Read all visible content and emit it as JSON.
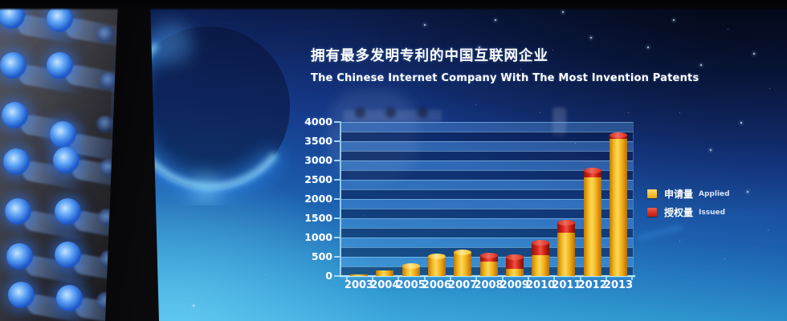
{
  "screen": {
    "title_zh": "拥有最多发明专利的中国互联网企业",
    "title_en": "The Chinese Internet Company With The Most Invention Patents"
  },
  "legend": {
    "applied": {
      "zh": "申请量",
      "en": "Applied",
      "color": "#f2c12c"
    },
    "issued": {
      "zh": "授权量",
      "en": "Issued",
      "color": "#d3261a"
    }
  },
  "chart_data": {
    "type": "bar",
    "stacked": true,
    "title": "拥有最多发明专利的中国互联网企业 / The Chinese Internet Company With The Most Invention Patents",
    "categories": [
      "2003",
      "2004",
      "2005",
      "2006",
      "2007",
      "2008",
      "2009",
      "2010",
      "2011",
      "2012",
      "2013"
    ],
    "series": [
      {
        "name": "申请量 Applied",
        "color": "#f2c12c",
        "values": [
          50,
          140,
          280,
          520,
          630,
          380,
          190,
          550,
          1120,
          2570,
          3560
        ]
      },
      {
        "name": "授权量 Issued",
        "color": "#d3261a",
        "values": [
          0,
          0,
          0,
          0,
          0,
          160,
          300,
          320,
          280,
          190,
          100
        ]
      }
    ],
    "xlabel": "",
    "ylabel": "",
    "ylim": [
      0,
      4000
    ],
    "ytick_step": 500,
    "y_ticks": [
      "0",
      "500",
      "1000",
      "1500",
      "2000",
      "2500",
      "3000",
      "3500",
      "4000"
    ],
    "grid": true,
    "gridline_interval": 250,
    "legend_position": "right"
  }
}
